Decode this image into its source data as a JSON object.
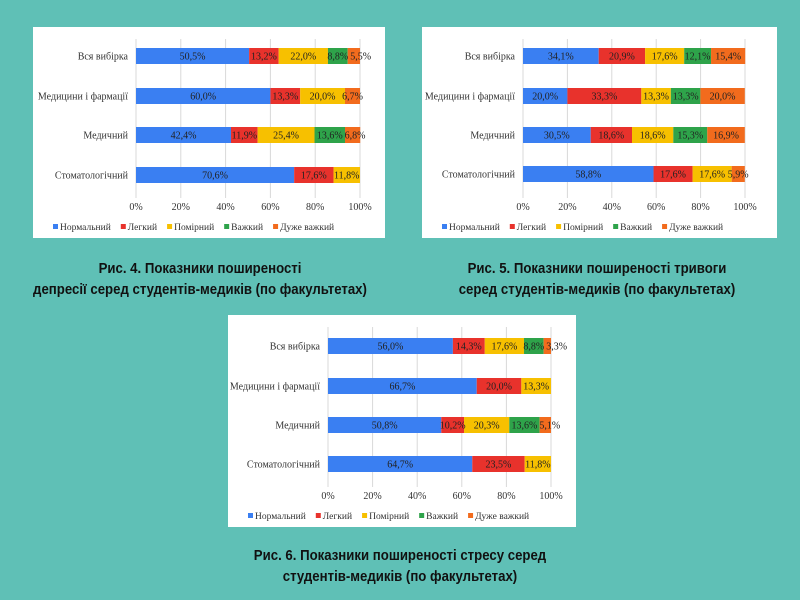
{
  "colors": [
    "#3a7ff2",
    "#e8322c",
    "#f7c000",
    "#2ea34a",
    "#f26b1d"
  ],
  "legend": [
    "Нормальний",
    "Легкий",
    "Помірний",
    "Важкий",
    "Дуже важкий"
  ],
  "chart_data": [
    {
      "type": "bar",
      "orientation": "horizontal-stacked",
      "categories": [
        "Вся вибірка",
        "Медицини і фармації",
        "Медичний",
        "Стоматологічний"
      ],
      "xlim": [
        0,
        100
      ],
      "ticks": [
        "0%",
        "20%",
        "40%",
        "60%",
        "80%",
        "100%"
      ],
      "grid": true,
      "legend_position": "bottom",
      "series": [
        {
          "name": "Нормальний",
          "values": [
            50.5,
            60.0,
            42.4,
            70.6
          ]
        },
        {
          "name": "Легкий",
          "values": [
            13.2,
            13.3,
            11.9,
            17.6
          ]
        },
        {
          "name": "Помірний",
          "values": [
            22.0,
            20.0,
            25.4,
            11.8
          ]
        },
        {
          "name": "Важкий",
          "values": [
            8.8,
            0,
            13.6,
            0
          ]
        },
        {
          "name": "Дуже важкий",
          "values": [
            5.5,
            6.7,
            6.8,
            0
          ]
        }
      ]
    },
    {
      "type": "bar",
      "orientation": "horizontal-stacked",
      "categories": [
        "Вся вибірка",
        "Медицини і фармації",
        "Медичний",
        "Стоматологічний"
      ],
      "xlim": [
        0,
        100
      ],
      "ticks": [
        "0%",
        "20%",
        "40%",
        "60%",
        "80%",
        "100%"
      ],
      "grid": true,
      "legend_position": "bottom",
      "series": [
        {
          "name": "Нормальний",
          "values": [
            34.1,
            20.0,
            30.5,
            58.8
          ]
        },
        {
          "name": "Легкий",
          "values": [
            20.9,
            33.3,
            18.6,
            17.6
          ]
        },
        {
          "name": "Помірний",
          "values": [
            17.6,
            13.3,
            18.6,
            17.6
          ]
        },
        {
          "name": "Важкий",
          "values": [
            12.1,
            13.3,
            15.3,
            0
          ]
        },
        {
          "name": "Дуже важкий",
          "values": [
            15.4,
            20.0,
            16.9,
            5.9
          ]
        }
      ]
    },
    {
      "type": "bar",
      "orientation": "horizontal-stacked",
      "categories": [
        "Вся вибірка",
        "Медицини і фармації",
        "Медичний",
        "Стоматологічний"
      ],
      "xlim": [
        0,
        100
      ],
      "ticks": [
        "0%",
        "20%",
        "40%",
        "60%",
        "80%",
        "100%"
      ],
      "grid": true,
      "legend_position": "bottom",
      "series": [
        {
          "name": "Нормальний",
          "values": [
            56.0,
            66.7,
            50.8,
            64.7
          ]
        },
        {
          "name": "Легкий",
          "values": [
            14.3,
            20.0,
            10.2,
            23.5
          ]
        },
        {
          "name": "Помірний",
          "values": [
            17.6,
            13.3,
            20.3,
            11.8
          ]
        },
        {
          "name": "Важкий",
          "values": [
            8.8,
            0,
            13.6,
            0
          ]
        },
        {
          "name": "Дуже важкий",
          "values": [
            3.3,
            0,
            5.1,
            0
          ]
        }
      ]
    }
  ],
  "captions": {
    "fig4": [
      "Рис. 4. Показники поширеності",
      "депресії серед студентів-медиків (по факультетах)"
    ],
    "fig5": [
      "Рис. 5. Показники поширеності тривоги",
      "серед студентів-медиків (по факультетах)"
    ],
    "fig6": [
      "Рис. 6. Показники поширеності стресу серед",
      "студентів-медиків (по факультетах)"
    ]
  }
}
